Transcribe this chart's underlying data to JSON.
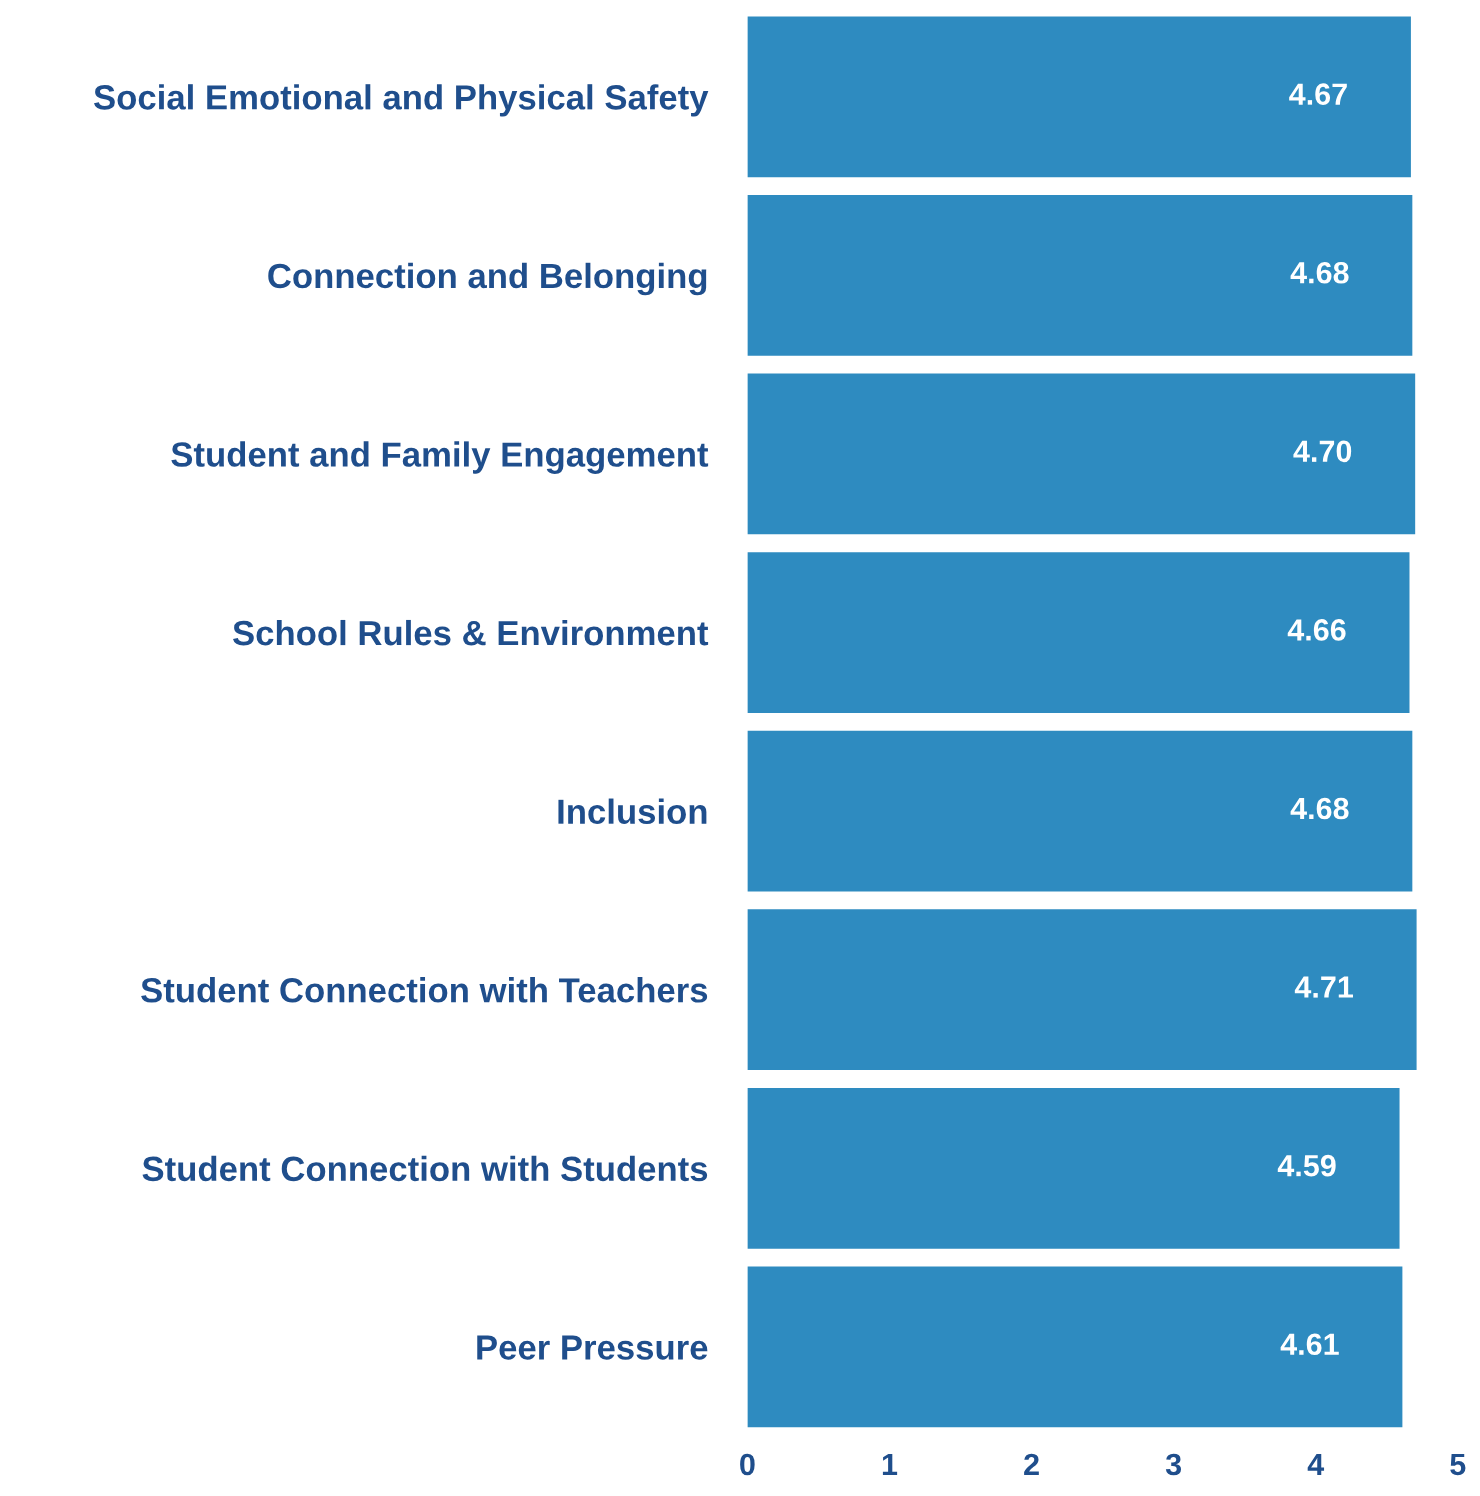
{
  "chart_data": {
    "type": "bar",
    "orientation": "horizontal",
    "categories": [
      "Social Emotional and Physical Safety",
      "Connection and Belonging",
      "Student and Family Engagement",
      "School Rules & Environment",
      "Inclusion",
      "Student Connection with Teachers",
      "Student Connection with Students",
      "Peer Pressure"
    ],
    "values": [
      4.67,
      4.68,
      4.7,
      4.66,
      4.68,
      4.71,
      4.59,
      4.61
    ],
    "value_labels": [
      "4.67",
      "4.68",
      "4.70",
      "4.66",
      "4.68",
      "4.71",
      "4.59",
      "4.61"
    ],
    "color": "#2e8bc0",
    "xlim": [
      0,
      5
    ],
    "xticks": [
      0,
      1,
      2,
      3,
      4,
      5
    ],
    "grid": false
  }
}
